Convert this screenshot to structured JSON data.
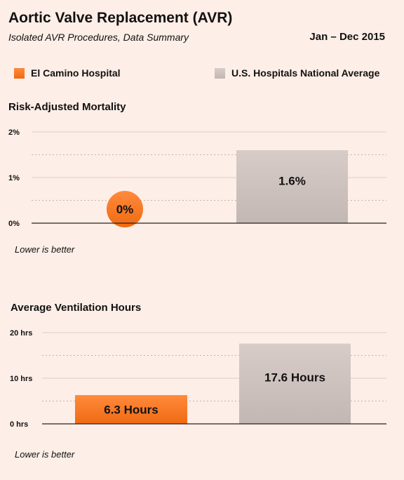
{
  "header": {
    "title": "Aortic Valve Replacement (AVR)",
    "subtitle": "Isolated AVR Procedures, Data Summary",
    "date_range": "Jan – Dec 2015"
  },
  "legend": {
    "items": [
      {
        "label": "El Camino Hospital",
        "color": "#f47a2a"
      },
      {
        "label": "U.S. Hospitals National Average",
        "color": "#cbbfbb"
      }
    ]
  },
  "chart_data": [
    {
      "type": "bar",
      "title": "Risk-Adjusted Mortality",
      "categories": [
        "El Camino Hospital",
        "U.S. Hospitals National Average"
      ],
      "values": [
        0,
        1.6
      ],
      "data_labels": [
        "0%",
        "1.6%"
      ],
      "ylim": [
        0,
        2
      ],
      "yticks": [
        0,
        1,
        2
      ],
      "ytick_labels": [
        "0%",
        "1%",
        "2%"
      ],
      "note": "Lower is better",
      "grid": true
    },
    {
      "type": "bar",
      "title": "Average Ventilation Hours",
      "categories": [
        "El Camino Hospital",
        "U.S. Hospitals National Average"
      ],
      "values": [
        6.3,
        17.6
      ],
      "data_labels": [
        "6.3 Hours",
        "17.6 Hours"
      ],
      "ylim": [
        0,
        20
      ],
      "yticks": [
        0,
        10,
        20
      ],
      "ytick_labels": [
        "0 hrs",
        "10 hrs",
        "20 hrs"
      ],
      "note": "Lower is better",
      "grid": true
    }
  ],
  "colors": {
    "hospital": "#f47a2a",
    "national": "#cbbfbb",
    "background": "#fdeee7"
  }
}
